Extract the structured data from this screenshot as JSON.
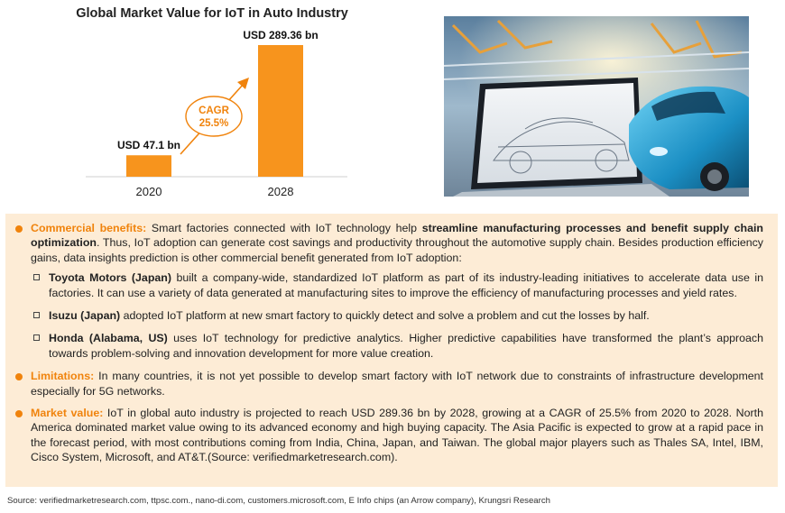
{
  "chart_data": {
    "type": "bar",
    "title": "Global Market Value for IoT in Auto Industry",
    "categories": [
      "2020",
      "2028"
    ],
    "values": [
      47.1,
      289.36
    ],
    "value_labels": [
      "USD 47.1 bn",
      "USD 289.36 bn"
    ],
    "annotation": {
      "line1": "CAGR",
      "line2": "25.5%"
    },
    "colors": {
      "bar": "#f7941d",
      "accent": "#f0830c"
    },
    "grid": false,
    "legend": "none"
  },
  "photo": {
    "icon": "car-factory-photo"
  },
  "panel": {
    "commercial": {
      "lead": "Commercial benefits:",
      "text1": " Smart factories connected with IoT technology help ",
      "bold": "streamline manufacturing processes and benefit supply chain optimization",
      "text2": ". Thus, IoT adoption can generate cost savings and productivity throughout the automotive supply chain. Besides production efficiency gains, data insights prediction is other commercial benefit generated from IoT adoption:"
    },
    "examples": [
      {
        "name": "Toyota Motors (Japan)",
        "text": " built a company-wide, standardized IoT platform as part of its industry-leading initiatives to accelerate data use in factories. It can use a variety of data generated at manufacturing sites to improve the efficiency of manufacturing processes and yield rates."
      },
      {
        "name": "Isuzu (Japan)",
        "text": " adopted IoT platform at new smart factory to quickly detect and solve a problem and cut the losses by half."
      },
      {
        "name": "Honda (Alabama, US)",
        "text": " uses IoT technology for predictive analytics. Higher predictive capabilities have transformed the plant’s approach towards problem-solving and innovation development for more value creation."
      }
    ],
    "limitations": {
      "lead": "Limitations:",
      "text": " In many countries, it is not yet possible to develop smart factory with IoT network due to constraints of infrastructure development especially for 5G networks."
    },
    "market": {
      "lead": "Market value:",
      "text": " IoT in global auto industry is projected to reach USD 289.36 bn by 2028, growing at a CAGR of 25.5% from 2020 to 2028. North America dominated market value owing to its advanced economy and high buying capacity. The Asia Pacific is expected to grow at a rapid pace in the forecast period, with most contributions coming from India, China, Japan, and Taiwan. The global major players such as Thales SA, Intel, IBM, Cisco System, Microsoft, and AT&T.(Source: verifiedmarketresearch.com)."
    }
  },
  "source": "Source: verifiedmarketresearch.com, ttpsc.com., nano-di.com, customers.microsoft.com, E Info chips (an Arrow company), Krungsri Research"
}
